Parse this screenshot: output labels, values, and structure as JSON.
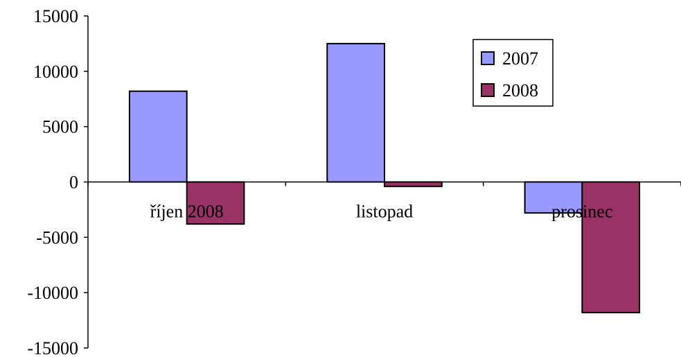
{
  "chart_data": {
    "type": "bar",
    "categories": [
      "říjen 2008",
      "listopad",
      "prosinec"
    ],
    "series": [
      {
        "name": "2007",
        "values": [
          8200,
          12500,
          -2800
        ],
        "color": "#9999ff"
      },
      {
        "name": "2008",
        "values": [
          -3800,
          -400,
          -11800
        ],
        "color": "#993366"
      }
    ],
    "ylim": [
      -15000,
      15000
    ],
    "yticks": [
      15000,
      10000,
      5000,
      0,
      -5000,
      -10000,
      -15000
    ],
    "ytick_labels": [
      "15000",
      "10000",
      "5000",
      "0",
      "-5000",
      "-10000",
      "-15000"
    ],
    "grid": false,
    "legend_position": "top-right",
    "title": "",
    "xlabel": "",
    "ylabel": ""
  }
}
